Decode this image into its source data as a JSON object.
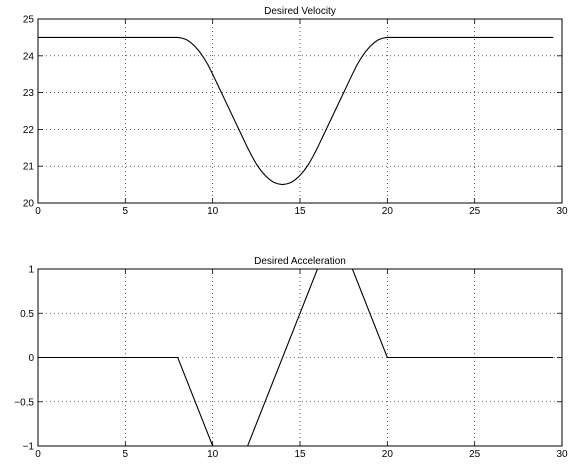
{
  "chart_data": [
    {
      "type": "line",
      "title": "Desired Velocity",
      "xlabel": "",
      "ylabel": "",
      "xlim": [
        0,
        30
      ],
      "ylim": [
        20,
        25
      ],
      "xticks": [
        0,
        5,
        10,
        15,
        20,
        25,
        30
      ],
      "yticks": [
        20,
        21,
        22,
        23,
        24,
        25
      ],
      "xtick_labels": [
        "0",
        "5",
        "10",
        "15",
        "20",
        "25",
        "30"
      ],
      "ytick_labels": [
        "20",
        "21",
        "22",
        "23",
        "24",
        "25"
      ],
      "grid": true,
      "series": [
        {
          "color": "#000000",
          "x": [
            0,
            8,
            8.25,
            8.5,
            8.75,
            9,
            9.25,
            9.5,
            9.75,
            10,
            10.25,
            10.5,
            10.75,
            11,
            11.25,
            11.5,
            11.75,
            12,
            12.25,
            12.5,
            12.75,
            13,
            13.25,
            13.5,
            13.75,
            14,
            14.25,
            14.5,
            14.75,
            15,
            15.25,
            15.5,
            15.75,
            16,
            16.5,
            17,
            17.5,
            18,
            18.25,
            18.5,
            18.75,
            19,
            19.25,
            19.5,
            19.75,
            20,
            29.5
          ],
          "y": [
            24.5,
            24.5,
            24.48,
            24.44,
            24.36,
            24.25,
            24.11,
            23.94,
            23.74,
            23.5,
            23.25,
            23.0,
            22.75,
            22.5,
            22.25,
            22.0,
            21.75,
            21.5,
            21.27,
            21.06,
            20.89,
            20.75,
            20.64,
            20.56,
            20.52,
            20.5,
            20.52,
            20.56,
            20.64,
            20.75,
            20.89,
            21.06,
            21.27,
            21.5,
            22.0,
            22.5,
            23.0,
            23.5,
            23.74,
            23.94,
            24.11,
            24.25,
            24.36,
            24.44,
            24.48,
            24.5,
            24.5
          ]
        }
      ]
    },
    {
      "type": "line",
      "title": "Desired Acceleration",
      "xlabel": "",
      "ylabel": "",
      "xlim": [
        0,
        30
      ],
      "ylim": [
        -1,
        1
      ],
      "xticks": [
        0,
        5,
        10,
        15,
        20,
        25,
        30
      ],
      "yticks": [
        -1,
        -0.5,
        0,
        0.5,
        1
      ],
      "xtick_labels": [
        "0",
        "5",
        "10",
        "15",
        "20",
        "25",
        "30"
      ],
      "ytick_labels": [
        "−1",
        "−0.5",
        "0",
        "0.5",
        "1"
      ],
      "grid": true,
      "series": [
        {
          "color": "#000000",
          "x": [
            0,
            8,
            10,
            12,
            16,
            18,
            20,
            29.5
          ],
          "y": [
            0,
            0,
            -1,
            -1,
            1,
            1,
            0,
            0
          ]
        }
      ]
    }
  ]
}
